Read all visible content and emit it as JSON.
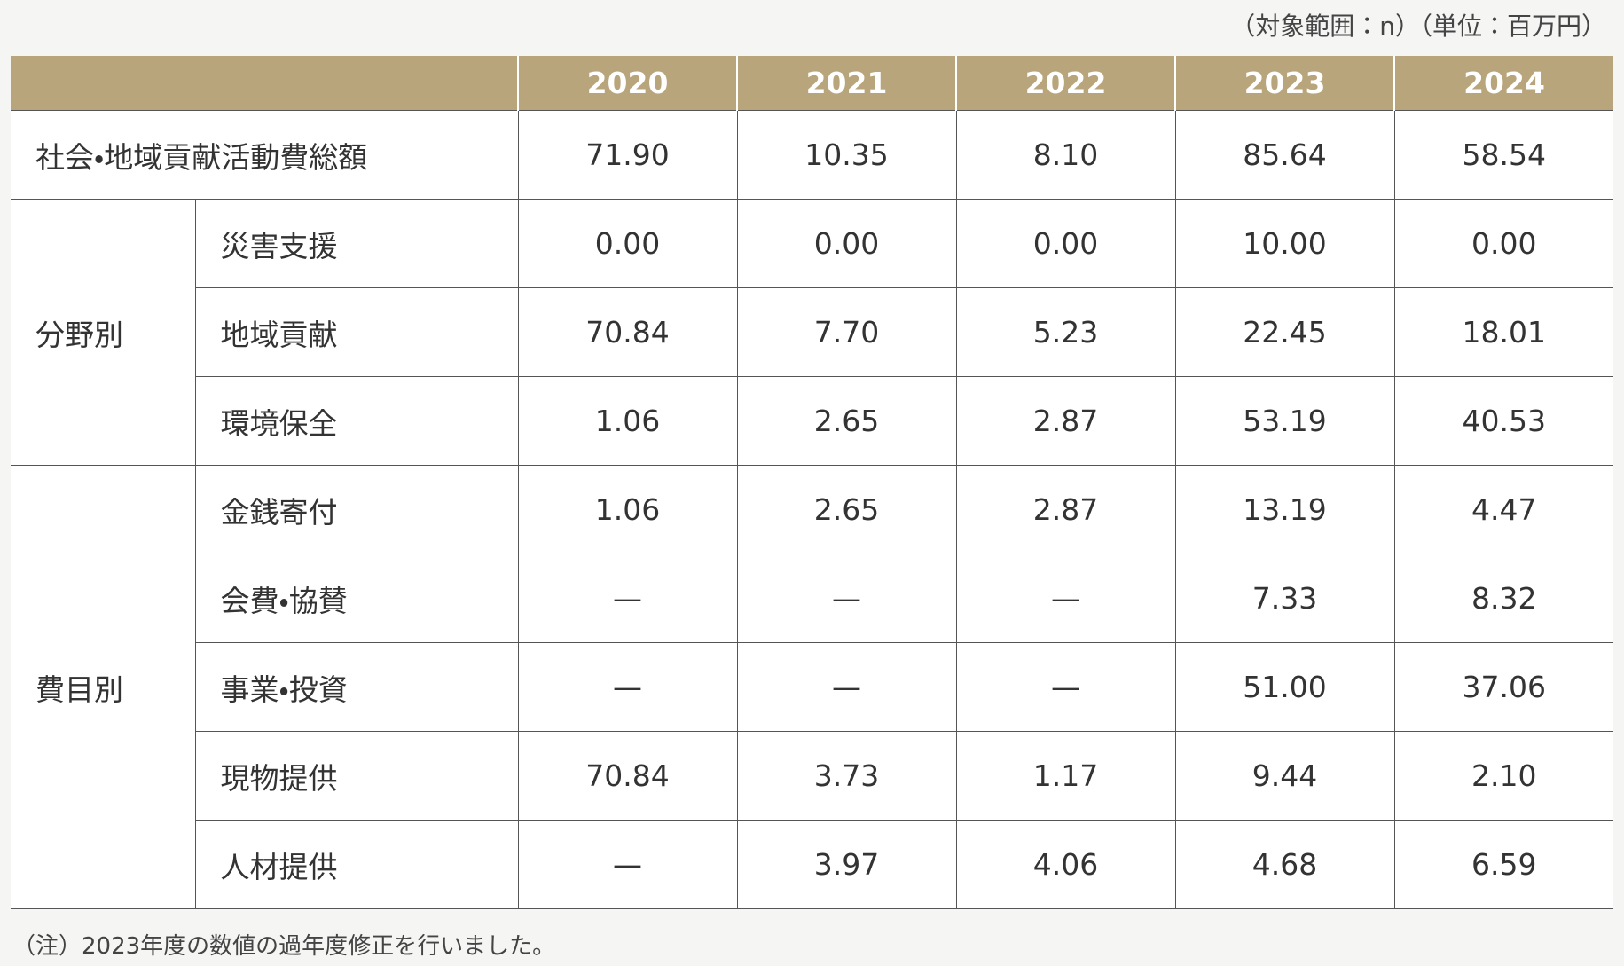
{
  "unit_note": "（対象範囲：n）（単位：百万円）",
  "table": {
    "columns": [
      "2020",
      "2021",
      "2022",
      "2023",
      "2024"
    ],
    "total": {
      "label": "社会・地域貢献活動費総額",
      "values": [
        "71.90",
        "10.35",
        "8.10",
        "85.64",
        "58.54"
      ]
    },
    "groups": [
      {
        "label": "分野別",
        "rows": [
          {
            "label": "災害支援",
            "values": [
              "0.00",
              "0.00",
              "0.00",
              "10.00",
              "0.00"
            ]
          },
          {
            "label": "地域貢献",
            "values": [
              "70.84",
              "7.70",
              "5.23",
              "22.45",
              "18.01"
            ]
          },
          {
            "label": "環境保全",
            "values": [
              "1.06",
              "2.65",
              "2.87",
              "53.19",
              "40.53"
            ]
          }
        ]
      },
      {
        "label": "費目別",
        "rows": [
          {
            "label": "金銭寄付",
            "values": [
              "1.06",
              "2.65",
              "2.87",
              "13.19",
              "4.47"
            ]
          },
          {
            "label": "会費・協賛",
            "values": [
              "—",
              "—",
              "—",
              "7.33",
              "8.32"
            ]
          },
          {
            "label": "事業・投資",
            "values": [
              "—",
              "—",
              "—",
              "51.00",
              "37.06"
            ]
          },
          {
            "label": "現物提供",
            "values": [
              "70.84",
              "3.73",
              "1.17",
              "9.44",
              "2.10"
            ]
          },
          {
            "label": "人材提供",
            "values": [
              "—",
              "3.97",
              "4.06",
              "4.68",
              "6.59"
            ]
          }
        ]
      }
    ]
  },
  "note": "（注）2023年度の数値の過年度修正を行いました。"
}
